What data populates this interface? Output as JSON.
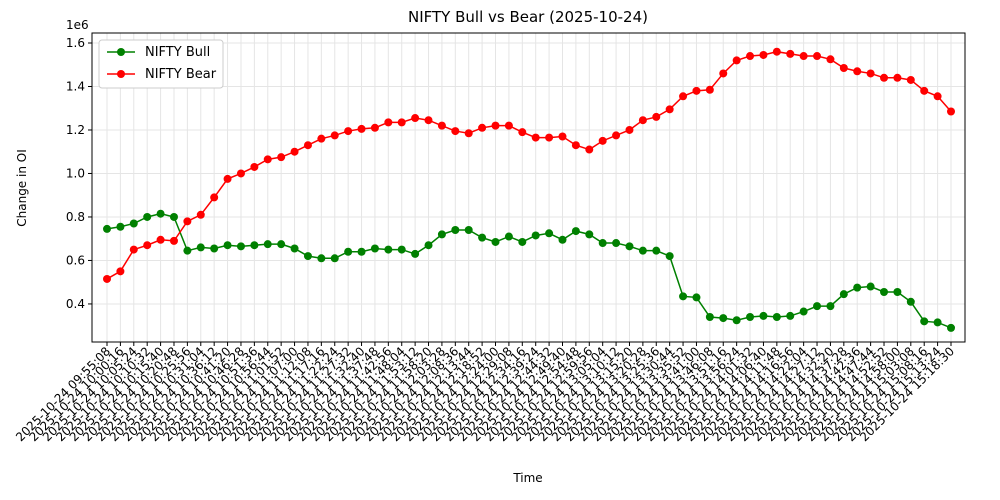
{
  "chart_data": {
    "type": "line",
    "title": "NIFTY Bull vs Bear (2025-10-24)",
    "xlabel": "Time",
    "ylabel": "Change in OI",
    "y_offset_label": "1e6",
    "categories": [
      "2025-10-24 09:55:08",
      "2025-10-24 10:00:16",
      "2025-10-24 10:05:24",
      "2025-10-24 10:10:32",
      "2025-10-24 10:15:40",
      "2025-10-24 10:20:48",
      "2025-10-24 10:25:56",
      "2025-10-24 10:31:04",
      "2025-10-24 10:36:12",
      "2025-10-24 10:41:20",
      "2025-10-24 10:46:28",
      "2025-10-24 10:51:36",
      "2025-10-24 10:56:44",
      "2025-10-24 11:01:52",
      "2025-10-24 11:07:00",
      "2025-10-24 11:12:08",
      "2025-10-24 11:17:16",
      "2025-10-24 11:22:24",
      "2025-10-24 11:27:32",
      "2025-10-24 11:32:40",
      "2025-10-24 11:37:48",
      "2025-10-24 11:42:56",
      "2025-10-24 11:48:04",
      "2025-10-24 11:53:12",
      "2025-10-24 11:58:20",
      "2025-10-24 12:03:28",
      "2025-10-24 12:08:36",
      "2025-10-24 12:13:44",
      "2025-10-24 12:18:52",
      "2025-10-24 12:24:00",
      "2025-10-24 12:29:08",
      "2025-10-24 12:34:16",
      "2025-10-24 12:39:24",
      "2025-10-24 12:44:32",
      "2025-10-24 12:49:40",
      "2025-10-24 12:54:48",
      "2025-10-24 12:59:56",
      "2025-10-24 13:05:04",
      "2025-10-24 13:10:12",
      "2025-10-24 13:15:20",
      "2025-10-24 13:20:28",
      "2025-10-24 13:25:36",
      "2025-10-24 13:30:44",
      "2025-10-24 13:35:52",
      "2025-10-24 13:41:00",
      "2025-10-24 13:46:08",
      "2025-10-24 13:51:16",
      "2025-10-24 13:56:24",
      "2025-10-24 14:01:32",
      "2025-10-24 14:06:40",
      "2025-10-24 14:11:48",
      "2025-10-24 14:16:56",
      "2025-10-24 14:22:04",
      "2025-10-24 14:27:12",
      "2025-10-24 14:32:20",
      "2025-10-24 14:37:28",
      "2025-10-24 14:42:36",
      "2025-10-24 14:47:44",
      "2025-10-24 14:52:52",
      "2025-10-24 14:58:00",
      "2025-10-24 15:03:08",
      "2025-10-24 15:08:16",
      "2025-10-24 15:13:24",
      "2025-10-24 15:18:30"
    ],
    "series": [
      {
        "name": "NIFTY Bull",
        "color": "green",
        "values": [
          0.745,
          0.755,
          0.77,
          0.8,
          0.815,
          0.8,
          0.645,
          0.66,
          0.655,
          0.67,
          0.665,
          0.67,
          0.675,
          0.675,
          0.655,
          0.62,
          0.61,
          0.61,
          0.64,
          0.64,
          0.655,
          0.65,
          0.65,
          0.63,
          0.67,
          0.72,
          0.74,
          0.74,
          0.705,
          0.685,
          0.71,
          0.685,
          0.715,
          0.725,
          0.695,
          0.735,
          0.72,
          0.68,
          0.68,
          0.665,
          0.645,
          0.645,
          0.62,
          0.435,
          0.43,
          0.34,
          0.335,
          0.325,
          0.34,
          0.345,
          0.34,
          0.345,
          0.365,
          0.39,
          0.39,
          0.445,
          0.475,
          0.48,
          0.455,
          0.455,
          0.41,
          0.32,
          0.315,
          0.29
        ]
      },
      {
        "name": "NIFTY Bear",
        "color": "red",
        "values": [
          0.515,
          0.55,
          0.65,
          0.67,
          0.695,
          0.69,
          0.78,
          0.81,
          0.89,
          0.975,
          1.0,
          1.03,
          1.065,
          1.075,
          1.1,
          1.13,
          1.16,
          1.175,
          1.195,
          1.205,
          1.21,
          1.235,
          1.235,
          1.255,
          1.245,
          1.22,
          1.195,
          1.185,
          1.21,
          1.22,
          1.22,
          1.19,
          1.165,
          1.165,
          1.17,
          1.13,
          1.11,
          1.15,
          1.175,
          1.2,
          1.245,
          1.26,
          1.295,
          1.355,
          1.38,
          1.385,
          1.46,
          1.52,
          1.54,
          1.545,
          1.56,
          1.55,
          1.54,
          1.54,
          1.525,
          1.485,
          1.47,
          1.46,
          1.44,
          1.44,
          1.43,
          1.38,
          1.355,
          1.285
        ]
      }
    ],
    "ylim": [
      0.225,
      1.646
    ],
    "yticks": [
      0.4,
      0.6,
      0.8,
      {
        "value": 1,
        "label": "1.0"
      },
      1.2,
      1.4,
      1.6
    ],
    "grid": true,
    "legend": "upper left"
  }
}
